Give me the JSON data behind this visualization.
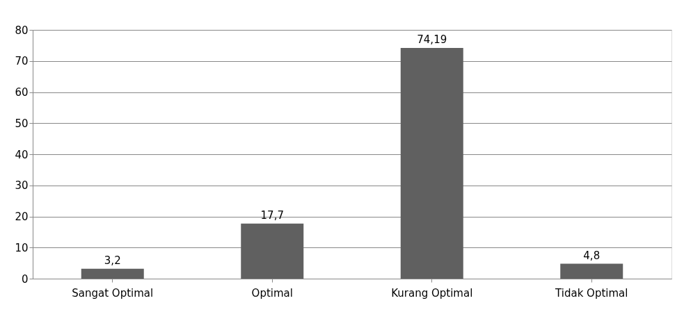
{
  "chart_data": {
    "type": "bar",
    "categories": [
      "Sangat Optimal",
      "Optimal",
      "Kurang Optimal",
      "Tidak Optimal"
    ],
    "values": [
      3.2,
      17.7,
      74.19,
      4.8
    ],
    "value_labels": [
      "3,2",
      "17,7",
      "74,19",
      "4,8"
    ],
    "color": "#606060",
    "ylim": [
      0,
      80
    ],
    "yticks": [
      0,
      10,
      20,
      30,
      40,
      50,
      60,
      70,
      80
    ],
    "grid": "y"
  }
}
